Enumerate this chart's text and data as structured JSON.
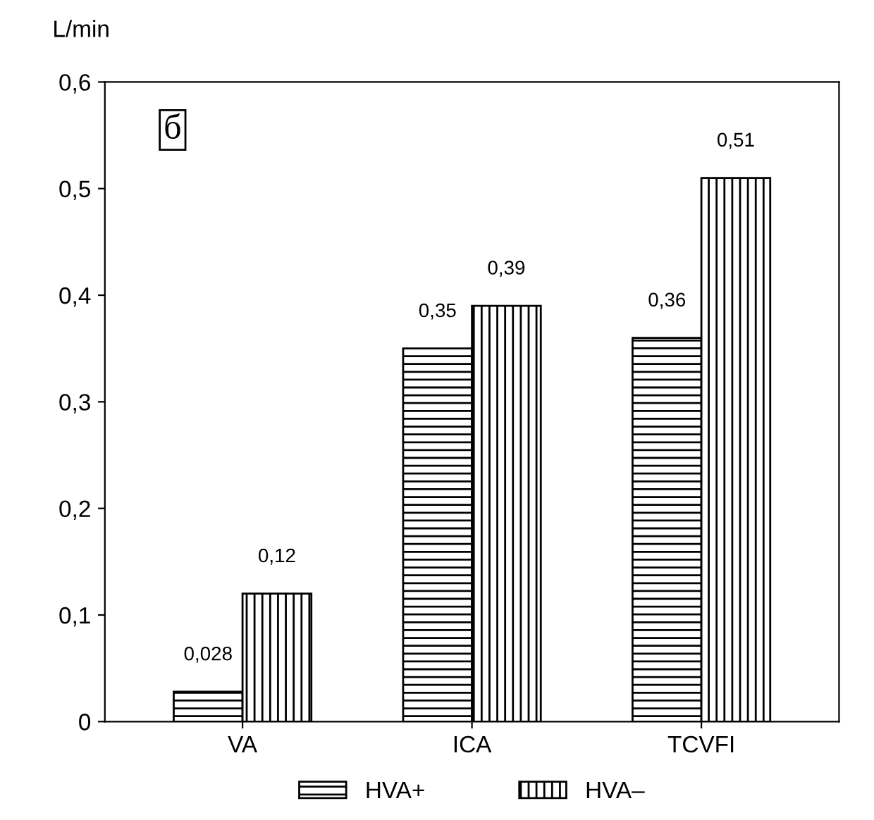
{
  "chart_data": {
    "type": "bar",
    "ylabel": "L/min",
    "categories": [
      "VA",
      "ICA",
      "TCVFI"
    ],
    "series": [
      {
        "name": "HVA+",
        "color": "#000000",
        "values": [
          0.028,
          0.35,
          0.36
        ],
        "value_labels": [
          "0,028",
          "0,35",
          "0,36"
        ]
      },
      {
        "name": "HVA–",
        "color": "#000000",
        "values": [
          0.12,
          0.39,
          0.51
        ],
        "value_labels": [
          "0,12",
          "0,39",
          "0,51"
        ]
      }
    ],
    "ylim": [
      0,
      0.6
    ],
    "yticks": [
      0,
      {
        "value": 0.1,
        "label": "0,1"
      },
      {
        "value": 0.2,
        "label": "0,2"
      },
      {
        "value": 0.3,
        "label": "0,3"
      },
      {
        "value": 0.4,
        "label": "0,4"
      },
      {
        "value": 0.5,
        "label": "0,5"
      },
      {
        "value": 0.6,
        "label": "0,6"
      }
    ],
    "annotations": [
      "б"
    ],
    "grid": false,
    "legend": "bottom"
  }
}
